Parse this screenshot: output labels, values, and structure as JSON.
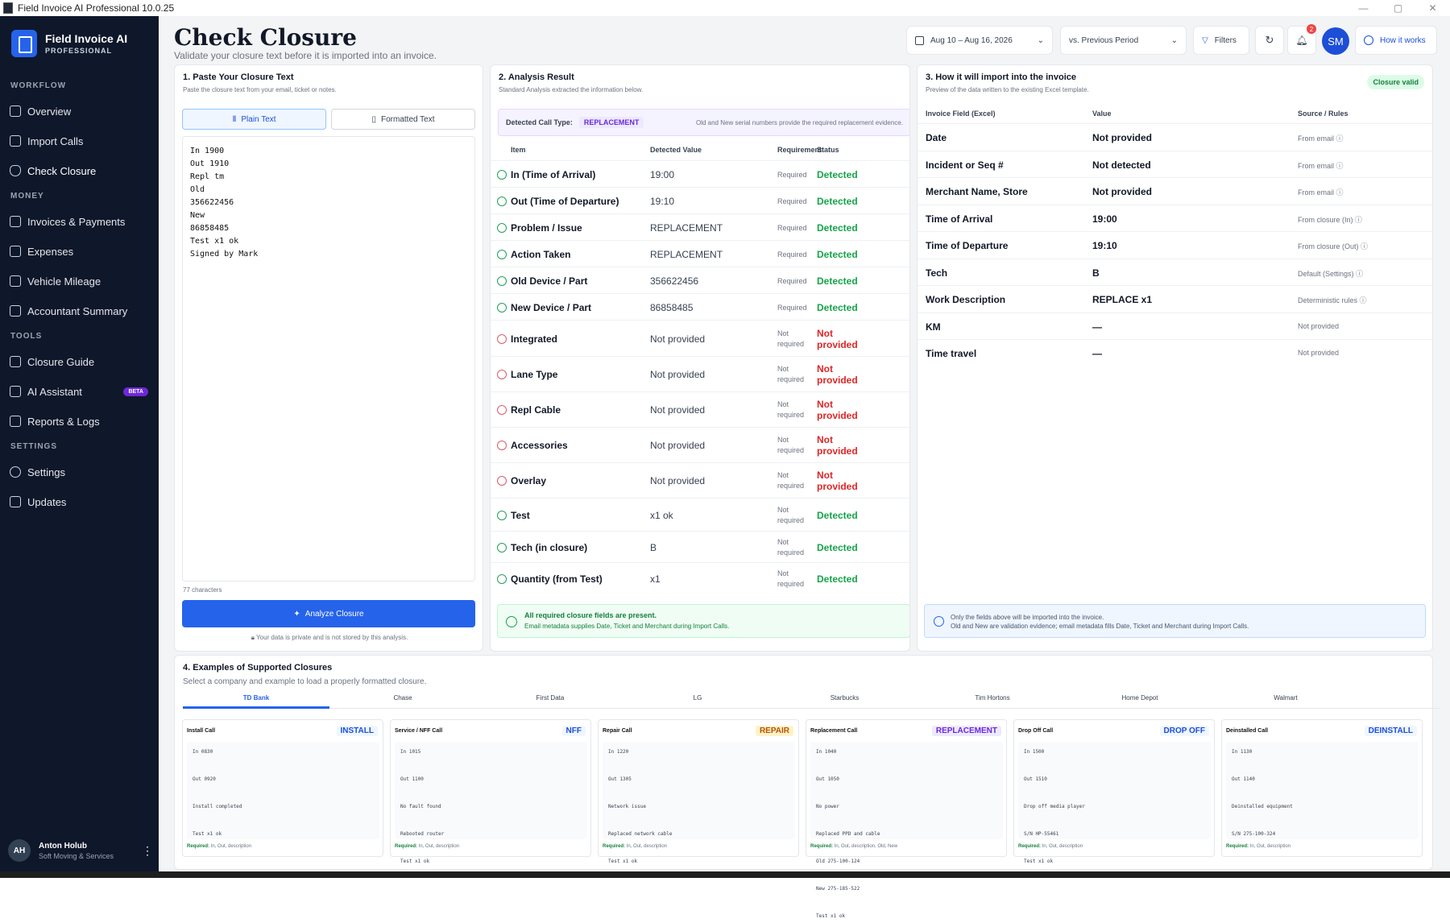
{
  "window": {
    "title": "Field Invoice AI Professional 10.0.25",
    "min": "—",
    "max": "▢",
    "close": "✕"
  },
  "brand": {
    "name": "Field Invoice AI",
    "edition": "PROFESSIONAL"
  },
  "sidebar": {
    "sections": [
      "WORKFLOW",
      "MONEY",
      "TOOLS",
      "SETTINGS"
    ],
    "items": [
      {
        "label": "Overview"
      },
      {
        "label": "Import Calls"
      },
      {
        "label": "Check Closure"
      },
      {
        "label": "Invoices & Payments"
      },
      {
        "label": "Expenses"
      },
      {
        "label": "Vehicle Mileage"
      },
      {
        "label": "Accountant Summary"
      },
      {
        "label": "Closure Guide"
      },
      {
        "label": "AI Assistant",
        "badge": "BETA"
      },
      {
        "label": "Reports & Logs"
      },
      {
        "label": "Settings"
      },
      {
        "label": "Updates"
      }
    ],
    "user": {
      "initials": "AH",
      "name": "Anton Holub",
      "company": "Soft Moving & Services"
    }
  },
  "header": {
    "title": "Check Closure",
    "subtitle": "Validate your closure text before it is imported into an invoice.",
    "date_range": "Aug 10 – Aug 16, 2026",
    "compare": "vs. Previous Period",
    "filters": "Filters",
    "notifications": "2",
    "avatar": "SM",
    "how": "How it works"
  },
  "paste": {
    "title": "1. Paste Your Closure Text",
    "subtitle": "Paste the closure text from your email, ticket or notes.",
    "tab_plain": "Plain Text",
    "tab_formatted": "Formatted Text",
    "text": "In 1900\nOut 1910\nRepl tm\nOld\n356622456\nNew\n86858485\nTest x1 ok\nSigned by Mark",
    "chars": "77 characters",
    "analyze": "Analyze Closure",
    "privacy": "Your data is private and is not stored by this analysis."
  },
  "analysis": {
    "title": "2. Analysis Result",
    "subtitle": "Standard Analysis extracted the information below.",
    "call_type_label": "Detected Call Type:",
    "call_type": "REPLACEMENT",
    "call_type_note": "Old and New serial numbers provide the required replacement evidence.",
    "headers": {
      "item": "Item",
      "value": "Detected Value",
      "req": "Requirement",
      "status": "Status"
    },
    "rows": [
      {
        "item": "In (Time of Arrival)",
        "value": "19:00",
        "req": "Required",
        "status": "Detected"
      },
      {
        "item": "Out (Time of Departure)",
        "value": "19:10",
        "req": "Required",
        "status": "Detected"
      },
      {
        "item": "Problem / Issue",
        "value": "REPLACEMENT",
        "req": "Required",
        "status": "Detected"
      },
      {
        "item": "Action Taken",
        "value": "REPLACEMENT",
        "req": "Required",
        "status": "Detected"
      },
      {
        "item": "Old Device / Part",
        "value": "356622456",
        "req": "Required",
        "status": "Detected"
      },
      {
        "item": "New Device / Part",
        "value": "86858485",
        "req": "Required",
        "status": "Detected"
      },
      {
        "item": "Integrated",
        "value": "Not provided",
        "req": "Not required",
        "status": "Not provided"
      },
      {
        "item": "Lane Type",
        "value": "Not provided",
        "req": "Not required",
        "status": "Not provided"
      },
      {
        "item": "Repl Cable",
        "value": "Not provided",
        "req": "Not required",
        "status": "Not provided"
      },
      {
        "item": "Accessories",
        "value": "Not provided",
        "req": "Not required",
        "status": "Not provided"
      },
      {
        "item": "Overlay",
        "value": "Not provided",
        "req": "Not required",
        "status": "Not provided"
      },
      {
        "item": "Test",
        "value": "x1 ok",
        "req": "Not required",
        "status": "Detected"
      },
      {
        "item": "Tech (in closure)",
        "value": "B",
        "req": "Not required",
        "status": "Detected"
      },
      {
        "item": "Quantity (from Test)",
        "value": "x1",
        "req": "Not required",
        "status": "Detected"
      }
    ],
    "ok_title": "All required closure fields are present.",
    "ok_note": "Email metadata supplies Date, Ticket and Merchant during Import Calls."
  },
  "import": {
    "title": "3. How it will import into the invoice",
    "subtitle": "Preview of the data written to the existing Excel template.",
    "badge": "Closure valid",
    "headers": {
      "field": "Invoice Field (Excel)",
      "value": "Value",
      "source": "Source / Rules"
    },
    "rows": [
      {
        "field": "Date",
        "value": "Not provided",
        "source": "From email ⓘ"
      },
      {
        "field": "Incident or Seq #",
        "value": "Not detected",
        "source": "From email ⓘ"
      },
      {
        "field": "Merchant Name, Store",
        "value": "Not provided",
        "source": "From email ⓘ"
      },
      {
        "field": "Time of Arrival",
        "value": "19:00",
        "source": "From closure (In) ⓘ"
      },
      {
        "field": "Time of Departure",
        "value": "19:10",
        "source": "From closure (Out) ⓘ"
      },
      {
        "field": "Tech",
        "value": "B",
        "source": "Default (Settings) ⓘ"
      },
      {
        "field": "Work Description",
        "value": "REPLACE x1",
        "source": "Deterministic rules ⓘ"
      },
      {
        "field": "KM",
        "value": "—",
        "source": "Not provided"
      },
      {
        "field": "Time travel",
        "value": "—",
        "source": "Not provided"
      }
    ],
    "info1": "Only the fields above will be imported into the invoice.",
    "info2": "Old and New are validation evidence; email metadata fills Date, Ticket and Merchant during Import Calls."
  },
  "examples": {
    "title": "4. Examples of Supported Closures",
    "subtitle": "Select a company and example to load a properly formatted closure.",
    "tabs": [
      "TD Bank",
      "Chase",
      "First Data",
      "LG",
      "Starbucks",
      "Tim Hortons",
      "Home Depot",
      "Walmart"
    ],
    "cards": [
      {
        "title": "Install Call",
        "badge": "INSTALL",
        "color": "#1d4ed8",
        "bg": "#eff6ff",
        "code": "In 0830\n\nOut 0920\n\nInstall completed\n\nTest x1 ok",
        "req_label": "Required:",
        "req": " In, Out, description"
      },
      {
        "title": "Service / NFF Call",
        "badge": "NFF",
        "color": "#1d4ed8",
        "bg": "#eff6ff",
        "code": "In 1015\n\nOut 1100\n\nNo fault found\n\nRebooted router\n\nTest x1 ok",
        "req_label": "Required:",
        "req": " In, Out, description"
      },
      {
        "title": "Repair Call",
        "badge": "REPAIR",
        "color": "#b45309",
        "bg": "#fef3c7",
        "code": "In 1220\n\nOut 1305\n\nNetwork issue\n\nReplaced network cable\n\nTest x1 ok",
        "req_label": "Required:",
        "req": " In, Out, description"
      },
      {
        "title": "Replacement Call",
        "badge": "REPLACEMENT",
        "color": "#6d28d9",
        "bg": "#ede9fe",
        "code": "In 1040\n\nOut 1050\n\nNo power\n\nReplaced PPD and cable\n\nOld 275-100-124\n\nNew 275-185-522\n\nTest x1 ok",
        "req_label": "Required:",
        "req": " In, Out, description, Old, New"
      },
      {
        "title": "Drop Off Call",
        "badge": "DROP OFF",
        "color": "#1d4ed8",
        "bg": "#eff6ff",
        "code": "In 1500\n\nOut 1510\n\nDrop off media player\n\nS/N HP-55461\n\nTest x1 ok",
        "req_label": "Required:",
        "req": " In, Out, description"
      },
      {
        "title": "Deinstalled Call",
        "badge": "DEINSTALL",
        "color": "#1d4ed8",
        "bg": "#eff6ff",
        "code": "In 1130\n\nOut 1140\n\nDeinstalled equipment\n\nS/N 275-100-324",
        "req_label": "Required:",
        "req": " In, Out, description"
      }
    ]
  }
}
